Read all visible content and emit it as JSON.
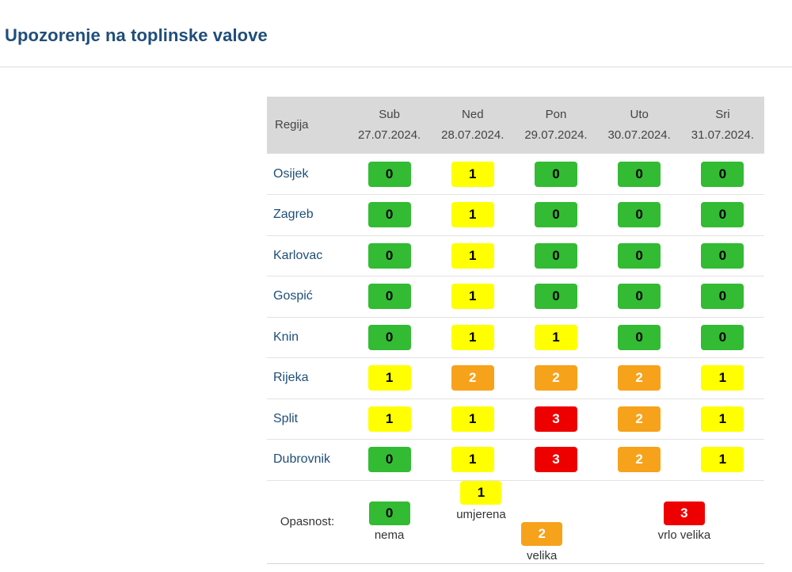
{
  "page": {
    "title": "Upozorenje na toplinske valove"
  },
  "table": {
    "region_header": "Regija",
    "days": [
      {
        "day": "Sub",
        "date": "27.07.2024."
      },
      {
        "day": "Ned",
        "date": "28.07.2024."
      },
      {
        "day": "Pon",
        "date": "29.07.2024."
      },
      {
        "day": "Uto",
        "date": "30.07.2024."
      },
      {
        "day": "Sri",
        "date": "31.07.2024."
      }
    ],
    "rows": [
      {
        "region": "Osijek",
        "levels": [
          "0",
          "1",
          "0",
          "0",
          "0"
        ]
      },
      {
        "region": "Zagreb",
        "levels": [
          "0",
          "1",
          "0",
          "0",
          "0"
        ]
      },
      {
        "region": "Karlovac",
        "levels": [
          "0",
          "1",
          "0",
          "0",
          "0"
        ]
      },
      {
        "region": "Gospić",
        "levels": [
          "0",
          "1",
          "0",
          "0",
          "0"
        ]
      },
      {
        "region": "Knin",
        "levels": [
          "0",
          "1",
          "1",
          "0",
          "0"
        ]
      },
      {
        "region": "Rijeka",
        "levels": [
          "1",
          "2",
          "2",
          "2",
          "1"
        ]
      },
      {
        "region": "Split",
        "levels": [
          "1",
          "1",
          "3",
          "2",
          "1"
        ]
      },
      {
        "region": "Dubrovnik",
        "levels": [
          "0",
          "1",
          "3",
          "2",
          "1"
        ]
      }
    ]
  },
  "legend": {
    "label": "Opasnost:",
    "items": [
      {
        "level": "0",
        "text": "nema"
      },
      {
        "level": "1",
        "text": "umjerena"
      },
      {
        "level": "2",
        "text": "velika"
      },
      {
        "level": "3",
        "text": "vrlo velika"
      }
    ]
  },
  "colors": {
    "level_0": "#33bb33",
    "level_1": "#ffff00",
    "level_2": "#f7a21b",
    "level_3": "#ee0000",
    "title": "#1f4e79",
    "header_bg": "#d9d9d9"
  }
}
